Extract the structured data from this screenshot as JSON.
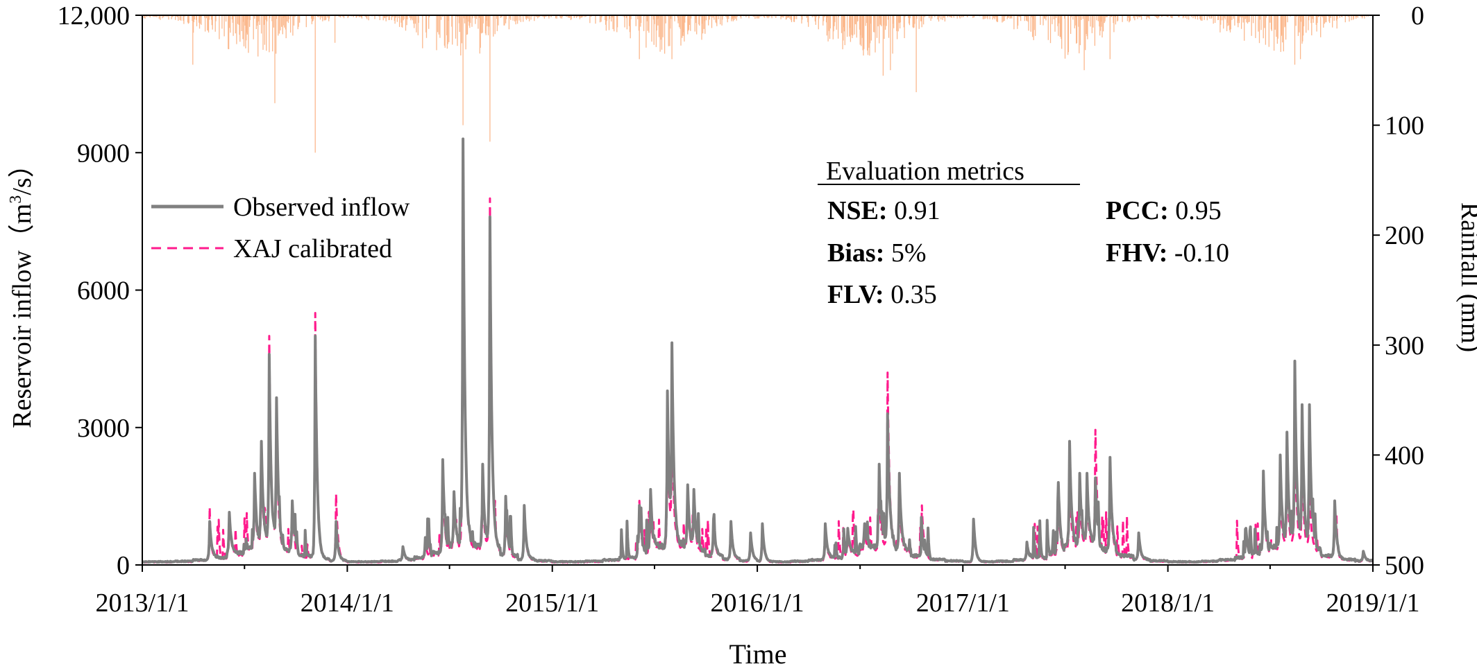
{
  "chart_data": {
    "type": "line",
    "xlabel": "Time",
    "ylabel_left": "Reservoir inflow（m³/s）",
    "ylabel_left_parts": [
      "Reservoir inflow（m",
      "3",
      "/s）"
    ],
    "ylabel_right": "Rainfall (mm)",
    "x_range": [
      "2013-01-01",
      "2019-01-01"
    ],
    "x_ticks": [
      "2013/1/1",
      "2014/1/1",
      "2015/1/1",
      "2016/1/1",
      "2017/1/1",
      "2018/1/1",
      "2019/1/1"
    ],
    "y_left_range": [
      0,
      12000
    ],
    "y_left_ticks": [
      "0",
      "3000",
      "6000",
      "9000",
      "12,000"
    ],
    "y_right_range": [
      0,
      500
    ],
    "y_right_inverted": true,
    "y_right_ticks": [
      "0",
      "100",
      "200",
      "300",
      "400",
      "500"
    ],
    "grid": false,
    "legend_position": "upper-left",
    "series": [
      {
        "name": "Observed inflow",
        "color": "#808080",
        "style": "solid",
        "base_by_month": [
          70,
          70,
          80,
          110,
          160,
          260,
          400,
          420,
          320,
          200,
          120,
          90
        ],
        "peaks": [
          [
            "2013-05-01",
            950
          ],
          [
            "2013-06-05",
            1150
          ],
          [
            "2013-07-20",
            2000
          ],
          [
            "2013-08-01",
            2700
          ],
          [
            "2013-08-15",
            4600
          ],
          [
            "2013-08-28",
            3650
          ],
          [
            "2013-09-25",
            1400
          ],
          [
            "2013-11-05",
            5000
          ],
          [
            "2013-12-12",
            950
          ],
          [
            "2014-04-10",
            400
          ],
          [
            "2014-05-20",
            600
          ],
          [
            "2014-06-20",
            2300
          ],
          [
            "2014-07-10",
            1600
          ],
          [
            "2014-07-26",
            9300
          ],
          [
            "2014-08-30",
            2200
          ],
          [
            "2014-09-12",
            7600
          ],
          [
            "2014-10-10",
            1500
          ],
          [
            "2014-11-12",
            1300
          ],
          [
            "2015-06-05",
            1300
          ],
          [
            "2015-06-25",
            1650
          ],
          [
            "2015-07-25",
            3800
          ],
          [
            "2015-08-02",
            4850
          ],
          [
            "2015-08-30",
            1750
          ],
          [
            "2015-09-10",
            1650
          ],
          [
            "2015-10-15",
            1000
          ],
          [
            "2015-11-15",
            950
          ],
          [
            "2015-12-20",
            700
          ],
          [
            "2016-01-10",
            900
          ],
          [
            "2016-05-01",
            900
          ],
          [
            "2016-06-10",
            800
          ],
          [
            "2016-07-10",
            900
          ],
          [
            "2016-08-05",
            2200
          ],
          [
            "2016-08-20",
            3300
          ],
          [
            "2016-09-10",
            2000
          ],
          [
            "2016-10-20",
            700
          ],
          [
            "2017-01-20",
            1000
          ],
          [
            "2017-04-25",
            500
          ],
          [
            "2017-06-20",
            1800
          ],
          [
            "2017-07-10",
            2700
          ],
          [
            "2017-07-28",
            2000
          ],
          [
            "2017-08-10",
            2000
          ],
          [
            "2017-08-25",
            1900
          ],
          [
            "2017-09-20",
            2350
          ],
          [
            "2017-11-10",
            700
          ],
          [
            "2018-05-20",
            800
          ],
          [
            "2018-06-20",
            2050
          ],
          [
            "2018-07-20",
            2400
          ],
          [
            "2018-08-01",
            2900
          ],
          [
            "2018-08-15",
            4450
          ],
          [
            "2018-08-28",
            3500
          ],
          [
            "2018-09-10",
            3500
          ],
          [
            "2018-10-25",
            1400
          ],
          [
            "2018-12-15",
            300
          ]
        ]
      },
      {
        "name": "XAJ calibrated",
        "color": "#ff1a8c",
        "style": "dashed",
        "base_by_month": [
          60,
          60,
          70,
          100,
          140,
          230,
          360,
          380,
          290,
          180,
          110,
          80
        ],
        "peaks": [
          [
            "2013-05-01",
            800
          ],
          [
            "2013-06-05",
            1000
          ],
          [
            "2013-07-20",
            1700
          ],
          [
            "2013-08-01",
            2300
          ],
          [
            "2013-08-15",
            5000
          ],
          [
            "2013-08-28",
            3000
          ],
          [
            "2013-09-25",
            1300
          ],
          [
            "2013-11-05",
            5500
          ],
          [
            "2013-12-12",
            1550
          ],
          [
            "2014-04-10",
            350
          ],
          [
            "2014-05-20",
            500
          ],
          [
            "2014-06-20",
            2000
          ],
          [
            "2014-07-10",
            1400
          ],
          [
            "2014-07-26",
            9300
          ],
          [
            "2014-08-30",
            1700
          ],
          [
            "2014-09-12",
            8000
          ],
          [
            "2014-10-10",
            1200
          ],
          [
            "2014-11-12",
            1200
          ],
          [
            "2015-06-05",
            1400
          ],
          [
            "2015-06-25",
            1300
          ],
          [
            "2015-07-25",
            3200
          ],
          [
            "2015-08-02",
            3100
          ],
          [
            "2015-08-30",
            1500
          ],
          [
            "2015-09-10",
            1400
          ],
          [
            "2015-10-15",
            900
          ],
          [
            "2015-11-15",
            900
          ],
          [
            "2015-12-20",
            700
          ],
          [
            "2016-01-10",
            800
          ],
          [
            "2016-05-01",
            700
          ],
          [
            "2016-06-10",
            700
          ],
          [
            "2016-07-10",
            700
          ],
          [
            "2016-08-05",
            1600
          ],
          [
            "2016-08-20",
            4200
          ],
          [
            "2016-09-10",
            1500
          ],
          [
            "2016-10-20",
            1300
          ],
          [
            "2017-01-20",
            1000
          ],
          [
            "2017-04-25",
            500
          ],
          [
            "2017-06-20",
            1500
          ],
          [
            "2017-07-10",
            1800
          ],
          [
            "2017-07-28",
            1500
          ],
          [
            "2017-08-10",
            1600
          ],
          [
            "2017-08-25",
            2950
          ],
          [
            "2017-09-20",
            1900
          ],
          [
            "2017-11-10",
            600
          ],
          [
            "2018-05-20",
            800
          ],
          [
            "2018-06-20",
            1800
          ],
          [
            "2018-07-20",
            1600
          ],
          [
            "2018-08-01",
            2000
          ],
          [
            "2018-08-15",
            2900
          ],
          [
            "2018-08-28",
            2200
          ],
          [
            "2018-09-10",
            1700
          ],
          [
            "2018-10-25",
            1100
          ],
          [
            "2018-12-15",
            300
          ]
        ]
      }
    ],
    "rainfall": {
      "name": "Rainfall",
      "color": "#fbb88d",
      "base_by_month": [
        2,
        3,
        5,
        10,
        15,
        20,
        25,
        22,
        14,
        8,
        4,
        2
      ],
      "spikes": [
        [
          "2013-04-01",
          45
        ],
        [
          "2013-08-25",
          80
        ],
        [
          "2013-11-05",
          125
        ],
        [
          "2013-12-10",
          25
        ],
        [
          "2014-07-26",
          100
        ],
        [
          "2014-09-12",
          115
        ],
        [
          "2014-05-15",
          30
        ],
        [
          "2015-06-05",
          40
        ],
        [
          "2015-07-20",
          35
        ],
        [
          "2015-08-02",
          40
        ],
        [
          "2016-08-12",
          55
        ],
        [
          "2016-08-25",
          50
        ],
        [
          "2016-10-10",
          70
        ],
        [
          "2017-08-05",
          50
        ],
        [
          "2017-09-20",
          40
        ],
        [
          "2018-08-15",
          45
        ],
        [
          "2018-08-25",
          40
        ]
      ]
    },
    "metrics": {
      "title": "Evaluation metrics",
      "items": [
        {
          "label": "NSE:",
          "value": "0.91"
        },
        {
          "label": "PCC:",
          "value": "0.95"
        },
        {
          "label": "Bias:",
          "value": "5%"
        },
        {
          "label": "FHV:",
          "value": "-0.10"
        },
        {
          "label": "FLV:",
          "value": "0.35"
        }
      ]
    }
  }
}
